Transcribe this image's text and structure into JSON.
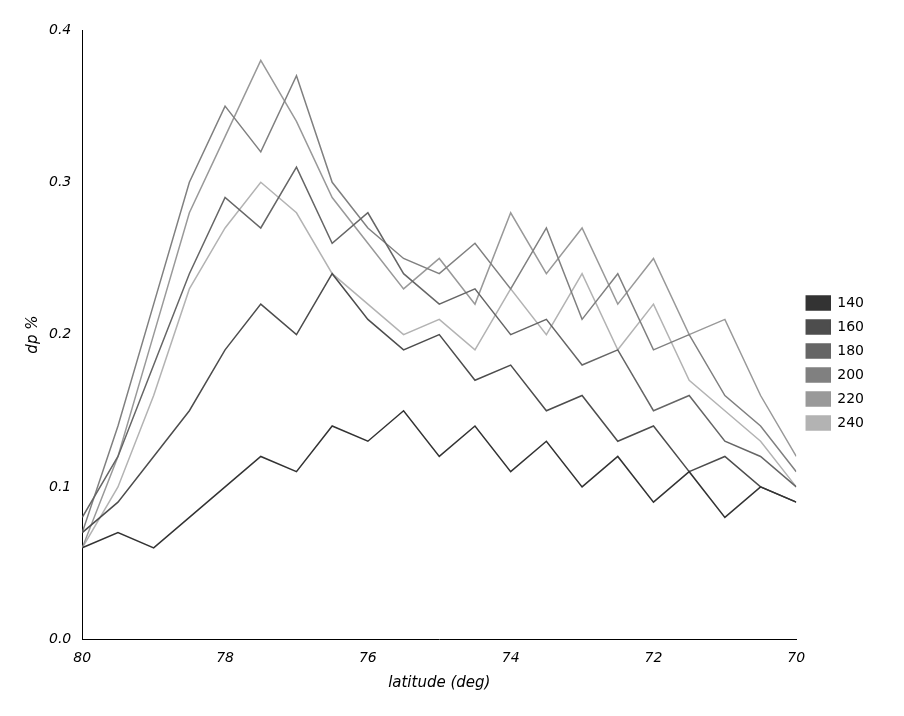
{
  "chart_data": {
    "type": "line",
    "x_label": "latitude (deg)",
    "y_label": "dp %",
    "x": [
      80,
      79.5,
      79,
      78.5,
      78,
      77.5,
      77,
      76.5,
      76,
      75.5,
      75,
      74.5,
      74,
      73.5,
      73,
      72.5,
      72,
      71.5,
      71,
      70.5,
      70
    ],
    "xlim": [
      80,
      70
    ],
    "xticks": [
      80,
      78,
      76,
      74,
      72,
      70
    ],
    "ylim": [
      0,
      0.4
    ],
    "yticks": [
      {
        "value": 0,
        "label": "0.0"
      },
      0.1,
      0.2,
      0.3,
      0.4
    ],
    "grid": false,
    "legend": "right",
    "series": [
      {
        "name": "140",
        "color": "#333333",
        "values": [
          0.06,
          0.07,
          0.06,
          0.08,
          0.1,
          0.12,
          0.11,
          0.14,
          0.13,
          0.15,
          0.12,
          0.14,
          0.11,
          0.13,
          0.1,
          0.12,
          0.09,
          0.11,
          0.08,
          0.1,
          0.09
        ]
      },
      {
        "name": "160",
        "color": "#4d4d4d",
        "values": [
          0.07,
          0.09,
          0.12,
          0.15,
          0.19,
          0.22,
          0.2,
          0.24,
          0.21,
          0.19,
          0.2,
          0.17,
          0.18,
          0.15,
          0.16,
          0.13,
          0.14,
          0.11,
          0.12,
          0.1,
          0.09
        ]
      },
      {
        "name": "180",
        "color": "#666666",
        "values": [
          0.08,
          0.12,
          0.18,
          0.24,
          0.29,
          0.27,
          0.31,
          0.26,
          0.28,
          0.24,
          0.22,
          0.23,
          0.2,
          0.21,
          0.18,
          0.19,
          0.15,
          0.16,
          0.13,
          0.12,
          0.1
        ]
      },
      {
        "name": "200",
        "color": "#808080",
        "values": [
          0.07,
          0.14,
          0.22,
          0.3,
          0.35,
          0.32,
          0.37,
          0.3,
          0.27,
          0.25,
          0.24,
          0.26,
          0.23,
          0.27,
          0.21,
          0.24,
          0.19,
          0.2,
          0.16,
          0.14,
          0.11
        ]
      },
      {
        "name": "220",
        "color": "#999999",
        "values": [
          0.06,
          0.12,
          0.2,
          0.28,
          0.33,
          0.38,
          0.34,
          0.29,
          0.26,
          0.23,
          0.25,
          0.22,
          0.28,
          0.24,
          0.27,
          0.22,
          0.25,
          0.2,
          0.21,
          0.16,
          0.12
        ]
      },
      {
        "name": "240",
        "color": "#b3b3b3",
        "values": [
          0.06,
          0.1,
          0.16,
          0.23,
          0.27,
          0.3,
          0.28,
          0.24,
          0.22,
          0.2,
          0.21,
          0.19,
          0.23,
          0.2,
          0.24,
          0.19,
          0.22,
          0.17,
          0.15,
          0.13,
          0.1
        ]
      }
    ]
  }
}
